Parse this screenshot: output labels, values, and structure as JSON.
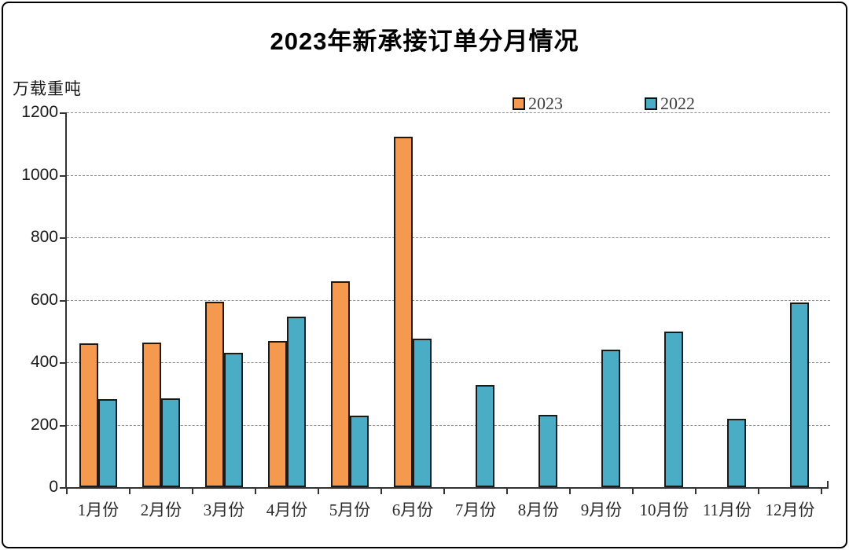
{
  "window": {
    "background_color": "#FFFFFF",
    "frame_border_color": "#000000"
  },
  "chart_data": {
    "type": "bar",
    "title": "2023年新承接订单分月情况",
    "unit_label": "万载重吨",
    "categories": [
      "1月份",
      "2月份",
      "3月份",
      "4月份",
      "5月份",
      "6月份",
      "7月份",
      "8月份",
      "9月份",
      "10月份",
      "11月份",
      "12月份"
    ],
    "series": [
      {
        "name": "2023",
        "color": "#F4994E",
        "values": [
          461,
          464,
          593,
          467,
          660,
          1122,
          null,
          null,
          null,
          null,
          null,
          null
        ]
      },
      {
        "name": "2022",
        "color": "#4AACC5",
        "values": [
          281,
          285,
          429,
          546,
          230,
          476,
          327,
          232,
          440,
          497,
          220,
          592
        ]
      }
    ],
    "ylim": [
      0,
      1200
    ],
    "ytick_step": 200,
    "y_tick_labels": [
      "0",
      "200",
      "400",
      "600",
      "800",
      "1000",
      "1200"
    ],
    "grid": "horizontal-dashed",
    "legend_position": "top-inside",
    "bar_border_color": "#1A1A1A",
    "gridline_color": "#8C8C8C",
    "axis_color": "#333333",
    "legend_text_color": "#3F3F3F"
  }
}
